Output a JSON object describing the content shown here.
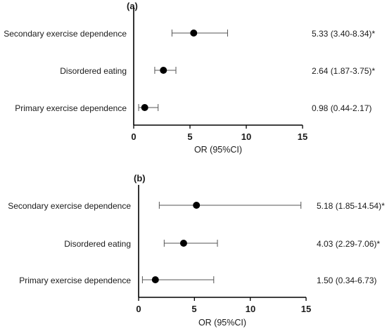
{
  "chart_data": [
    {
      "type": "scatter",
      "panel_label": "(a)",
      "xlabel": "OR (95%CI)",
      "xlim": [
        0,
        15
      ],
      "xticks": [
        "0",
        "5",
        "10",
        "15"
      ],
      "categories": [
        "Secondary exercise dependence",
        "Disordered eating",
        "Primary exercise dependence"
      ],
      "points": [
        {
          "label": "Secondary exercise dependence",
          "or": 5.33,
          "lower": 3.4,
          "upper": 8.34,
          "text": "5.33 (3.40-8.34)*"
        },
        {
          "label": "Disordered eating",
          "or": 2.64,
          "lower": 1.87,
          "upper": 3.75,
          "text": "2.64 (1.87-3.75)*"
        },
        {
          "label": "Primary exercise dependence",
          "or": 0.98,
          "lower": 0.44,
          "upper": 2.17,
          "text": "0.98 (0.44-2.17)"
        }
      ]
    },
    {
      "type": "scatter",
      "panel_label": "(b)",
      "xlabel": "OR (95%CI)",
      "xlim": [
        0,
        15
      ],
      "xticks": [
        "0",
        "5",
        "10",
        "15"
      ],
      "categories": [
        "Secondary exercise dependence",
        "Disordered eating",
        "Primary exercise dependence"
      ],
      "points": [
        {
          "label": "Secondary exercise dependence",
          "or": 5.18,
          "lower": 1.85,
          "upper": 14.54,
          "text": "5.18 (1.85-14.54)*"
        },
        {
          "label": "Disordered eating",
          "or": 4.03,
          "lower": 2.29,
          "upper": 7.06,
          "text": "4.03 (2.29-7.06)*"
        },
        {
          "label": "Primary exercise dependence",
          "or": 1.5,
          "lower": 0.34,
          "upper": 6.73,
          "text": "1.50 (0.34-6.73)"
        }
      ]
    }
  ]
}
